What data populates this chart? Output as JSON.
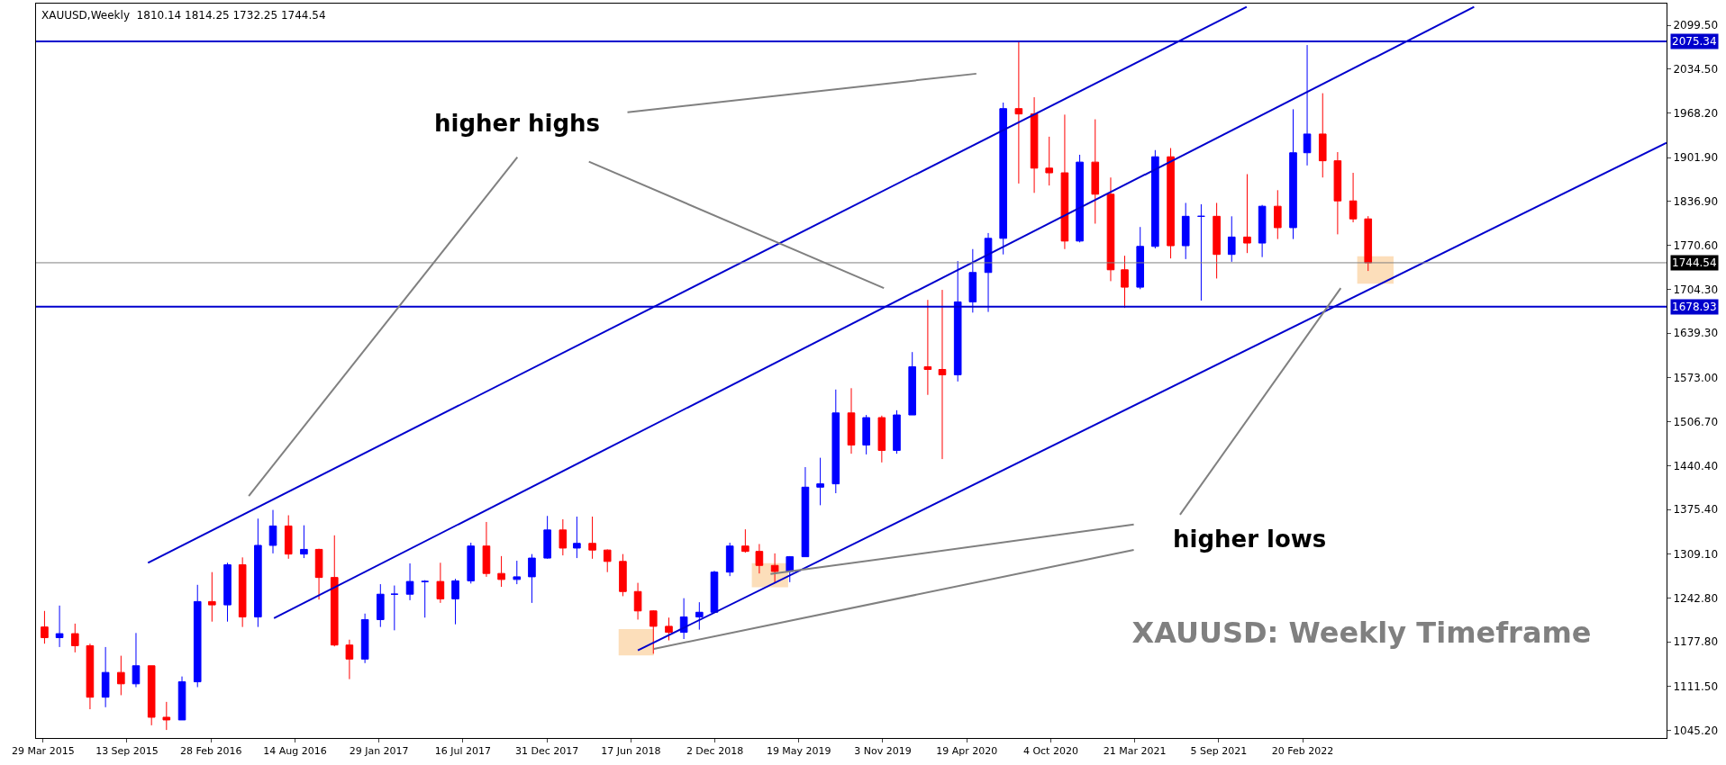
{
  "chart_data": {
    "type": "candlestick",
    "title": "XAUUSD: Weekly Timeframe",
    "annotations": [
      "XAUUSD,Weekly  1810.14 1814.25 1732.25 1744.54",
      "higher highs",
      "higher lows"
    ],
    "x": [
      "2015-04",
      "2015-05",
      "2015-06",
      "2015-07",
      "2015-08",
      "2015-09",
      "2015-10",
      "2015-11",
      "2015-12",
      "2016-01",
      "2016-02",
      "2016-03",
      "2016-04",
      "2016-05",
      "2016-06",
      "2016-07",
      "2016-08",
      "2016-09",
      "2016-10",
      "2016-11",
      "2016-12",
      "2017-01",
      "2017-02",
      "2017-03",
      "2017-04",
      "2017-05",
      "2017-06",
      "2017-07",
      "2017-08",
      "2017-09",
      "2017-10",
      "2017-11",
      "2017-12",
      "2018-01",
      "2018-02",
      "2018-03",
      "2018-04",
      "2018-05",
      "2018-06",
      "2018-07",
      "2018-08",
      "2018-09",
      "2018-10",
      "2018-11",
      "2018-12",
      "2019-01",
      "2019-02",
      "2019-03",
      "2019-04",
      "2019-05",
      "2019-06",
      "2019-07",
      "2019-08",
      "2019-09",
      "2019-10",
      "2019-11",
      "2019-12",
      "2020-01",
      "2020-02",
      "2020-03",
      "2020-04",
      "2020-05",
      "2020-06",
      "2020-07",
      "2020-08",
      "2020-09",
      "2020-10",
      "2020-11",
      "2020-12",
      "2021-01",
      "2021-02",
      "2021-03",
      "2021-04",
      "2021-05",
      "2021-06",
      "2021-07",
      "2021-08",
      "2021-09",
      "2021-10",
      "2021-11",
      "2021-12",
      "2022-01",
      "2022-02",
      "2022-03",
      "2022-04",
      "2022-05",
      "2022-06",
      "2022-07"
    ],
    "ohlc": [
      [
        1200,
        1224,
        1175,
        1184
      ],
      [
        1184,
        1232,
        1170,
        1190
      ],
      [
        1190,
        1205,
        1162,
        1172
      ],
      [
        1172,
        1175,
        1077,
        1095
      ],
      [
        1095,
        1170,
        1080,
        1132
      ],
      [
        1132,
        1157,
        1098,
        1115
      ],
      [
        1115,
        1191,
        1110,
        1142
      ],
      [
        1142,
        1142,
        1053,
        1065
      ],
      [
        1065,
        1088,
        1046,
        1061
      ],
      [
        1061,
        1126,
        1061,
        1118
      ],
      [
        1118,
        1263,
        1110,
        1238
      ],
      [
        1238,
        1282,
        1208,
        1233
      ],
      [
        1233,
        1296,
        1208,
        1293
      ],
      [
        1293,
        1304,
        1200,
        1215
      ],
      [
        1215,
        1362,
        1200,
        1322
      ],
      [
        1322,
        1375,
        1310,
        1351
      ],
      [
        1351,
        1367,
        1302,
        1309
      ],
      [
        1309,
        1352,
        1303,
        1316
      ],
      [
        1316,
        1317,
        1241,
        1274
      ],
      [
        1274,
        1337,
        1171,
        1173
      ],
      [
        1173,
        1181,
        1122,
        1152
      ],
      [
        1152,
        1220,
        1146,
        1211
      ],
      [
        1211,
        1264,
        1200,
        1249
      ],
      [
        1249,
        1262,
        1195,
        1249
      ],
      [
        1249,
        1295,
        1240,
        1268
      ],
      [
        1268,
        1270,
        1214,
        1268
      ],
      [
        1268,
        1296,
        1236,
        1242
      ],
      [
        1242,
        1272,
        1204,
        1269
      ],
      [
        1269,
        1326,
        1265,
        1321
      ],
      [
        1321,
        1357,
        1275,
        1280
      ],
      [
        1280,
        1306,
        1260,
        1271
      ],
      [
        1271,
        1299,
        1264,
        1275
      ],
      [
        1275,
        1309,
        1236,
        1303
      ],
      [
        1303,
        1366,
        1302,
        1345
      ],
      [
        1345,
        1361,
        1307,
        1318
      ],
      [
        1318,
        1365,
        1303,
        1325
      ],
      [
        1325,
        1365,
        1302,
        1315
      ],
      [
        1315,
        1316,
        1282,
        1298
      ],
      [
        1298,
        1309,
        1246,
        1253
      ],
      [
        1253,
        1266,
        1211,
        1224
      ],
      [
        1224,
        1225,
        1160,
        1201
      ],
      [
        1201,
        1214,
        1180,
        1192
      ],
      [
        1192,
        1243,
        1182,
        1215
      ],
      [
        1215,
        1237,
        1196,
        1222
      ],
      [
        1222,
        1284,
        1221,
        1282
      ],
      [
        1282,
        1326,
        1276,
        1321
      ],
      [
        1321,
        1346,
        1311,
        1313
      ],
      [
        1313,
        1324,
        1280,
        1292
      ],
      [
        1292,
        1310,
        1266,
        1283
      ],
      [
        1283,
        1306,
        1267,
        1305
      ],
      [
        1305,
        1439,
        1305,
        1409
      ],
      [
        1409,
        1453,
        1382,
        1414
      ],
      [
        1414,
        1555,
        1400,
        1520
      ],
      [
        1520,
        1557,
        1459,
        1472
      ],
      [
        1472,
        1517,
        1458,
        1513
      ],
      [
        1513,
        1516,
        1446,
        1464
      ],
      [
        1464,
        1524,
        1459,
        1517
      ],
      [
        1517,
        1611,
        1517,
        1589
      ],
      [
        1589,
        1689,
        1547,
        1585
      ],
      [
        1585,
        1704,
        1451,
        1577
      ],
      [
        1577,
        1747,
        1567,
        1686
      ],
      [
        1686,
        1765,
        1670,
        1730
      ],
      [
        1730,
        1789,
        1671,
        1781
      ],
      [
        1781,
        1984,
        1757,
        1975
      ],
      [
        1975,
        2075,
        1863,
        1967
      ],
      [
        1967,
        1992,
        1849,
        1886
      ],
      [
        1886,
        1933,
        1860,
        1879
      ],
      [
        1879,
        1966,
        1765,
        1777
      ],
      [
        1777,
        1906,
        1775,
        1895
      ],
      [
        1895,
        1959,
        1803,
        1847
      ],
      [
        1847,
        1872,
        1717,
        1734
      ],
      [
        1734,
        1755,
        1677,
        1708
      ],
      [
        1708,
        1798,
        1705,
        1769
      ],
      [
        1769,
        1913,
        1766,
        1903
      ],
      [
        1903,
        1916,
        1751,
        1770
      ],
      [
        1770,
        1834,
        1750,
        1814
      ],
      [
        1814,
        1832,
        1688,
        1814
      ],
      [
        1814,
        1834,
        1721,
        1757
      ],
      [
        1757,
        1814,
        1746,
        1783
      ],
      [
        1783,
        1877,
        1759,
        1774
      ],
      [
        1774,
        1831,
        1753,
        1829
      ],
      [
        1829,
        1853,
        1780,
        1797
      ],
      [
        1797,
        1974,
        1780,
        1909
      ],
      [
        1909,
        2070,
        1890,
        1937
      ],
      [
        1937,
        1998,
        1872,
        1897
      ],
      [
        1897,
        1910,
        1787,
        1837
      ],
      [
        1837,
        1879,
        1805,
        1810.14
      ],
      [
        1810.14,
        1814.25,
        1732.25,
        1744.54
      ]
    ],
    "colors": [
      "#ff0000",
      "#0000ff",
      "#ff0000",
      "#ff0000",
      "#0000ff",
      "#ff0000",
      "#0000ff",
      "#ff0000",
      "#ff0000",
      "#0000ff",
      "#0000ff",
      "#ff0000",
      "#0000ff",
      "#ff0000",
      "#0000ff",
      "#0000ff",
      "#ff0000",
      "#0000ff",
      "#ff0000",
      "#ff0000",
      "#ff0000",
      "#0000ff",
      "#0000ff",
      "#0000ff",
      "#0000ff",
      "#0000ff",
      "#ff0000",
      "#0000ff",
      "#0000ff",
      "#ff0000",
      "#ff0000",
      "#0000ff",
      "#0000ff",
      "#0000ff",
      "#ff0000",
      "#0000ff",
      "#ff0000",
      "#ff0000",
      "#ff0000",
      "#ff0000",
      "#ff0000",
      "#ff0000",
      "#0000ff",
      "#0000ff",
      "#0000ff",
      "#0000ff",
      "#ff0000",
      "#ff0000",
      "#ff0000",
      "#0000ff",
      "#0000ff",
      "#0000ff",
      "#0000ff",
      "#ff0000",
      "#0000ff",
      "#ff0000",
      "#0000ff",
      "#0000ff",
      "#ff0000",
      "#ff0000",
      "#0000ff",
      "#0000ff",
      "#0000ff",
      "#0000ff",
      "#ff0000",
      "#ff0000",
      "#ff0000",
      "#ff0000",
      "#0000ff",
      "#ff0000",
      "#ff0000",
      "#ff0000",
      "#0000ff",
      "#0000ff",
      "#ff0000",
      "#0000ff",
      "#0000ff",
      "#ff0000",
      "#0000ff",
      "#ff0000",
      "#0000ff",
      "#ff0000",
      "#0000ff",
      "#0000ff",
      "#ff0000",
      "#ff0000",
      "#ff0000",
      "#ff0000"
    ],
    "series": [
      {
        "type": "line",
        "color": "#0000cd",
        "x": [
          "2015-10-25",
          "2021-10-31"
        ],
        "values": [
          1296,
          2127
        ]
      },
      {
        "type": "line",
        "color": "#0000cd",
        "x": [
          "2016-07-03",
          "2023-01-29"
        ],
        "values": [
          1213,
          2127
        ]
      },
      {
        "type": "line",
        "color": "#0000cd",
        "x": [
          "2018-07-01",
          "2024-02-18"
        ],
        "values": [
          1165,
          1924
        ]
      }
    ],
    "ref_lines": [
      {
        "axis": "y",
        "value": 2075.34,
        "label": "2075.34",
        "color": "#0000cd"
      },
      {
        "axis": "y",
        "value": 1678.93,
        "label": "1678.93",
        "color": "#0000cd"
      },
      {
        "axis": "y",
        "value": 1744.54,
        "label": "1744.54",
        "color": "#808080"
      }
    ],
    "xlim": [
      "2015-03-15",
      "2024-02-18"
    ],
    "xticks": [
      {
        "value": "2015-03-29",
        "label": "29 Mar 2015"
      },
      {
        "value": "2015-09-13",
        "label": "13 Sep 2015"
      },
      {
        "value": "2016-02-28",
        "label": "28 Feb 2016"
      },
      {
        "value": "2016-08-14",
        "label": "14 Aug 2016"
      },
      {
        "value": "2017-01-29",
        "label": "29 Jan 2017"
      },
      {
        "value": "2017-07-16",
        "label": "16 Jul 2017"
      },
      {
        "value": "2017-12-31",
        "label": "31 Dec 2017"
      },
      {
        "value": "2018-06-17",
        "label": "17 Jun 2018"
      },
      {
        "value": "2018-12-02",
        "label": "2 Dec 2018"
      },
      {
        "value": "2019-05-19",
        "label": "19 May 2019"
      },
      {
        "value": "2019-11-03",
        "label": "3 Nov 2019"
      },
      {
        "value": "2020-04-19",
        "label": "19 Apr 2020"
      },
      {
        "value": "2020-10-04",
        "label": "4 Oct 2020"
      },
      {
        "value": "2021-03-21",
        "label": "21 Mar 2021"
      },
      {
        "value": "2021-09-05",
        "label": "5 Sep 2021"
      },
      {
        "value": "2022-02-20",
        "label": "20 Feb 2022"
      }
    ],
    "ylim": [
      1034,
      2132
    ],
    "yticks": [
      {
        "value": 1045.2,
        "label": "1045.20"
      },
      {
        "value": 1111.5,
        "label": "1111.50"
      },
      {
        "value": 1177.8,
        "label": "1177.80"
      },
      {
        "value": 1242.8,
        "label": "1242.80"
      },
      {
        "value": 1309.1,
        "label": "1309.10"
      },
      {
        "value": 1375.4,
        "label": "1375.40"
      },
      {
        "value": 1440.4,
        "label": "1440.40"
      },
      {
        "value": 1506.7,
        "label": "1506.70"
      },
      {
        "value": 1573,
        "label": "1573.00"
      },
      {
        "value": 1639.3,
        "label": "1639.30"
      },
      {
        "value": 1704.3,
        "label": "1704.30"
      },
      {
        "value": 1770.6,
        "label": "1770.60"
      },
      {
        "value": 1836.9,
        "label": "1836.90"
      },
      {
        "value": 1901.9,
        "label": "1901.90"
      },
      {
        "value": 1968.2,
        "label": "1968.20"
      },
      {
        "value": 2034.5,
        "label": "2034.50"
      },
      {
        "value": 2099.5,
        "label": "2099.50"
      }
    ],
    "grid": false
  }
}
